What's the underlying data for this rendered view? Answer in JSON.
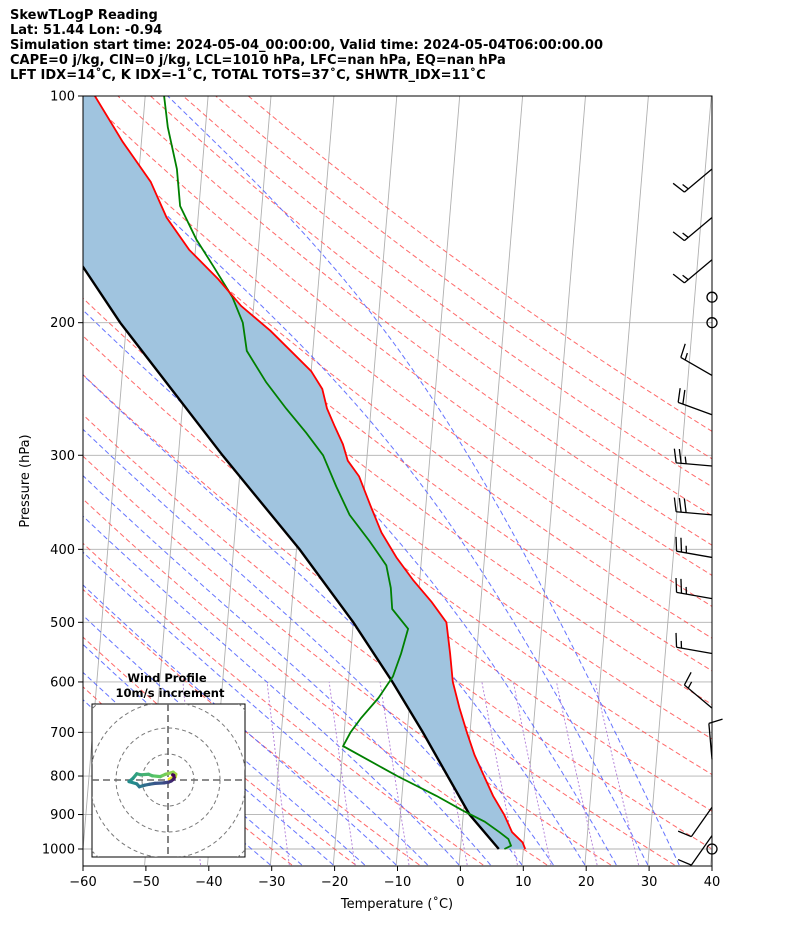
{
  "title_lines": [
    "SkewTLogP Reading",
    "Lat: 51.44   Lon: -0.94",
    "Simulation start time: 2024-05-04_00:00:00, Valid time: 2024-05-04T06:00:00.00",
    "CAPE=0 j/kg, CIN=0 j/kg, LCL=1010 hPa, LFC=nan hPa, EQ=nan hPa",
    "LFT IDX=14˚C, K IDX=-1˚C, TOTAL TOTS=37˚C, SHWTR_IDX=11˚C"
  ],
  "chart_data": {
    "type": "line",
    "subtype": "skew-t log-p",
    "xlabel": "Temperature (˚C)",
    "ylabel": "Pressure (hPa)",
    "xlim": [
      -60,
      40
    ],
    "ylim": [
      1050,
      100
    ],
    "x_ticks": [
      -60,
      -50,
      -40,
      -30,
      -20,
      -10,
      0,
      10,
      20,
      30,
      40
    ],
    "y_ticks": [
      100,
      200,
      300,
      400,
      500,
      600,
      700,
      800,
      900,
      1000
    ],
    "y_scale": "log",
    "grid": true,
    "series": [
      {
        "kind": "temperature",
        "color": "#ff0000",
        "points": [
          [
            10.3,
            1000
          ],
          [
            9.8,
            980
          ],
          [
            8.0,
            950
          ],
          [
            6.5,
            900
          ],
          [
            4.5,
            850
          ],
          [
            2.8,
            800
          ],
          [
            1.0,
            750
          ],
          [
            -0.5,
            700
          ],
          [
            -2.0,
            650
          ],
          [
            -3.4,
            600
          ],
          [
            -4.2,
            550
          ],
          [
            -5.2,
            500
          ],
          [
            -7.8,
            470
          ],
          [
            -11.0,
            440
          ],
          [
            -14.0,
            410
          ],
          [
            -16.7,
            380
          ],
          [
            -18.8,
            350
          ],
          [
            -21.0,
            320
          ],
          [
            -23.0,
            305
          ],
          [
            -24.0,
            290
          ],
          [
            -25.5,
            275
          ],
          [
            -27.0,
            260
          ],
          [
            -28.0,
            245
          ],
          [
            -30.0,
            232
          ],
          [
            -33.0,
            220
          ],
          [
            -37.0,
            205
          ],
          [
            -42.0,
            190
          ],
          [
            -46.0,
            175
          ],
          [
            -51.0,
            160
          ],
          [
            -55.0,
            145
          ],
          [
            -58.0,
            130
          ],
          [
            -63.0,
            115
          ],
          [
            -68.0,
            100
          ]
        ]
      },
      {
        "kind": "dewpoint",
        "color": "#008000",
        "points": [
          [
            7.0,
            1000
          ],
          [
            8.0,
            990
          ],
          [
            7.5,
            970
          ],
          [
            6.0,
            950
          ],
          [
            3.5,
            920
          ],
          [
            0.0,
            890
          ],
          [
            -4.5,
            850
          ],
          [
            -11.0,
            800
          ],
          [
            -20.0,
            730
          ],
          [
            -19.0,
            700
          ],
          [
            -17.5,
            670
          ],
          [
            -15.0,
            630
          ],
          [
            -13.0,
            590
          ],
          [
            -12.0,
            550
          ],
          [
            -11.2,
            510
          ],
          [
            -14.0,
            480
          ],
          [
            -14.5,
            450
          ],
          [
            -15.5,
            420
          ],
          [
            -18.5,
            390
          ],
          [
            -22.0,
            360
          ],
          [
            -24.5,
            330
          ],
          [
            -27.0,
            300
          ],
          [
            -30.0,
            280
          ],
          [
            -33.5,
            260
          ],
          [
            -37.0,
            240
          ],
          [
            -40.5,
            218
          ],
          [
            -41.5,
            200
          ],
          [
            -43.5,
            185
          ],
          [
            -47.0,
            168
          ],
          [
            -50.0,
            155
          ],
          [
            -53.0,
            140
          ],
          [
            -54.0,
            125
          ],
          [
            -56.0,
            110
          ],
          [
            -57.0,
            100
          ]
        ]
      },
      {
        "kind": "parcel",
        "color": "#000000",
        "points": [
          [
            6.1,
            1000
          ],
          [
            1.0,
            900
          ],
          [
            -3.0,
            800
          ],
          [
            -7.5,
            700
          ],
          [
            -13.0,
            600
          ],
          [
            -20.0,
            500
          ],
          [
            -29.5,
            400
          ],
          [
            -43.0,
            300
          ],
          [
            -61.0,
            200
          ],
          [
            -88.0,
            100
          ]
        ]
      }
    ],
    "dry_adiabat_thetas_c": [
      -30,
      -20,
      -10,
      0,
      10,
      20,
      30,
      40,
      50,
      60,
      70,
      80,
      90,
      100,
      110,
      120,
      130,
      140,
      150,
      160,
      170
    ],
    "moist_adiabat_start_temps_c": [
      -30,
      -25,
      -20,
      -15,
      -10,
      -5,
      0,
      5,
      10,
      15,
      20,
      25,
      30,
      35
    ],
    "mixing_ratios_gkg": [
      0.1,
      0.4,
      1,
      2,
      4,
      7,
      10,
      16,
      24
    ],
    "wind_barbs": [
      {
        "p": 125,
        "spd_kt": 15,
        "dir_deg": 230
      },
      {
        "p": 145,
        "spd_kt": 15,
        "dir_deg": 230
      },
      {
        "p": 165,
        "spd_kt": 15,
        "dir_deg": 230
      },
      {
        "p": 185,
        "spd_kt": 0,
        "dir_deg": 0
      },
      {
        "p": 200,
        "spd_kt": 0,
        "dir_deg": 0
      },
      {
        "p": 235,
        "spd_kt": 15,
        "dir_deg": 300
      },
      {
        "p": 265,
        "spd_kt": 20,
        "dir_deg": 290
      },
      {
        "p": 310,
        "spd_kt": 25,
        "dir_deg": 275
      },
      {
        "p": 360,
        "spd_kt": 30,
        "dir_deg": 275
      },
      {
        "p": 410,
        "spd_kt": 25,
        "dir_deg": 280
      },
      {
        "p": 465,
        "spd_kt": 25,
        "dir_deg": 280
      },
      {
        "p": 550,
        "spd_kt": 15,
        "dir_deg": 280
      },
      {
        "p": 650,
        "spd_kt": 15,
        "dir_deg": 310
      },
      {
        "p": 760,
        "spd_kt": 10,
        "dir_deg": 355
      },
      {
        "p": 880,
        "spd_kt": 10,
        "dir_deg": 215
      },
      {
        "p": 960,
        "spd_kt": 10,
        "dir_deg": 215
      },
      {
        "p": 1000,
        "spd_kt": 0,
        "dir_deg": 0
      }
    ],
    "hodograph": {
      "title": "Wind Profile",
      "subtitle": "10m/s increment",
      "ring_spacing_ms": 10,
      "points": [
        [
          0.5,
          0.3
        ],
        [
          1.5,
          0.8
        ],
        [
          2.8,
          1.2
        ],
        [
          3.0,
          2.2
        ],
        [
          2.0,
          3.0
        ],
        [
          -1.0,
          2.2
        ],
        [
          -3.0,
          1.3
        ],
        [
          -6.0,
          1.6
        ],
        [
          -7.5,
          2.2
        ],
        [
          -10.5,
          2.0
        ],
        [
          -12.0,
          2.4
        ],
        [
          -13.5,
          0.6
        ],
        [
          -15.0,
          -0.6
        ],
        [
          -12.0,
          -1.5
        ],
        [
          -11.0,
          -2.6
        ],
        [
          -9.0,
          -2.0
        ],
        [
          -7.0,
          -1.6
        ],
        [
          -5.0,
          -1.3
        ],
        [
          -1.5,
          -1.1
        ],
        [
          0.3,
          -0.8
        ],
        [
          1.2,
          -0.4
        ],
        [
          2.0,
          0.2
        ],
        [
          2.4,
          0.9
        ],
        [
          2.2,
          1.8
        ],
        [
          1.8,
          2.0
        ]
      ]
    }
  }
}
